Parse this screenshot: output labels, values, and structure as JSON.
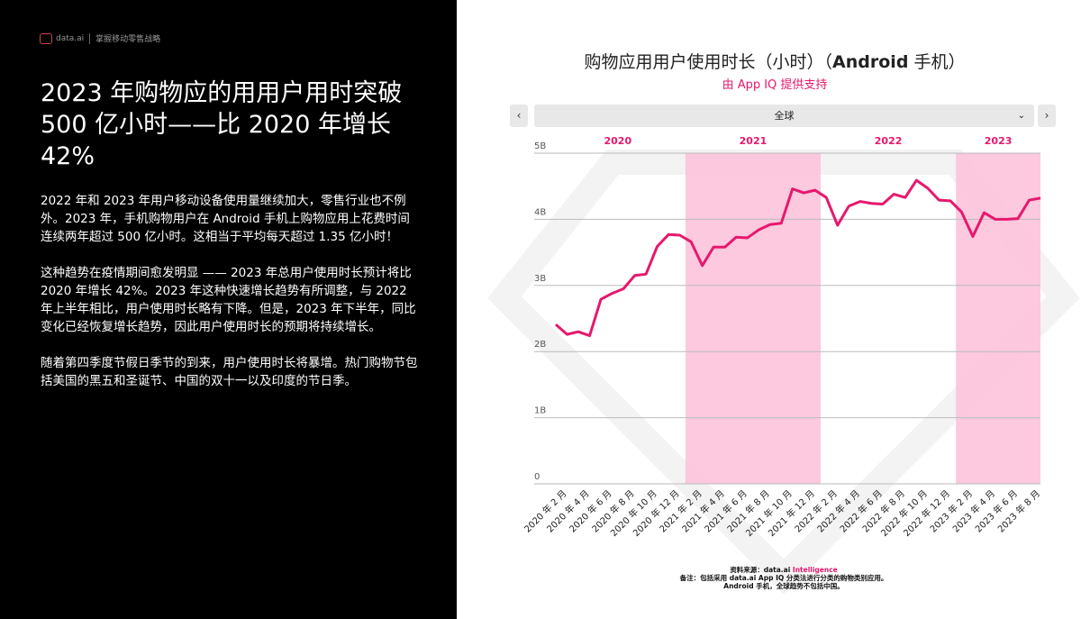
{
  "header": {
    "brand": "data.ai",
    "section": "掌握移动零售战略"
  },
  "headline": "2023 年购物应的用用户用时突破 500 亿小时——比 2020 年增长 42%",
  "body": [
    "2022 年和 2023 年用户移动设备使用量继续加大，零售行业也不例外。2023 年，手机购物用户在 Android 手机上购物应用上花费时间连续两年超过 500 亿小时。这相当于平均每天超过 1.35 亿小时！",
    "这种趋势在疫情期间愈发明显 —— 2023 年总用户使用时长预计将比 2020 年增长 42%。2023 年这种快速增长趋势有所调整，与 2022 年上半年相比，用户使用时长略有下降。但是，2023 年下半年，同比变化已经恢复增长趋势，因此用户使用时长的预期将持续增长。",
    "随着第四季度节假日季节的到来，用户使用时长将暴增。热门购物节包括美国的黑五和圣诞节、中国的双十一以及印度的节日季。"
  ],
  "chart_header": {
    "title_main": "购物应用用户使用时长（小时）（",
    "title_bold": "Android",
    "title_end": " 手机）",
    "subtitle": "由 App IQ 提供支持",
    "region_select": "全球",
    "prev": "‹",
    "next": "›",
    "chevron": "⌄"
  },
  "footer": {
    "source_label": "资料来源：data.ai ",
    "source_brand": "Intelligence",
    "note1": "备注：包括采用 data.ai App IQ 分类法进行分类的购物类别应用。",
    "note2": "Android 手机，全球趋势不包括中国。"
  },
  "colors": {
    "line": "#e6186d",
    "band": "#fcc3dc",
    "year_label": "#e6186d"
  },
  "chart_data": {
    "type": "line",
    "title": "购物应用用户使用时长（小时）（Android 手机）",
    "subtitle": "由 App IQ 提供支持",
    "ylim": [
      0,
      5
    ],
    "yticks": [
      "0",
      "1B",
      "2B",
      "3B",
      "4B",
      "5B"
    ],
    "ytick_values": [
      0,
      1,
      2,
      3,
      4,
      5
    ],
    "grid": true,
    "year_labels": [
      "2020",
      "2021",
      "2022",
      "2023"
    ],
    "shaded_years": [
      "2021",
      "2023"
    ],
    "x_tick_labels": [
      "2020 年 2 月",
      "2020 年 4 月",
      "2020 年 6 月",
      "2020 年 8 月",
      "2020 年 10 月",
      "2020 年 12 月",
      "2021 年 2 月",
      "2021 年 4 月",
      "2021 年 6 月",
      "2021 年 8 月",
      "2021 年 10 月",
      "2021 年 12 月",
      "2022 年 2 月",
      "2022 年 4 月",
      "2022 年 6 月",
      "2022 年 8 月",
      "2022 年 10 月",
      "2022 年 12 月",
      "2023 年 2 月",
      "2023 年 4 月",
      "2023 年 6 月",
      "2023 年 8 月"
    ],
    "x_start": "2020-01",
    "x_end": "2023-08",
    "unit": "B hours (monthly)",
    "values": [
      2.41,
      2.26,
      2.3,
      2.24,
      2.79,
      2.88,
      2.95,
      3.15,
      3.17,
      3.59,
      3.77,
      3.76,
      3.66,
      3.3,
      3.58,
      3.58,
      3.73,
      3.72,
      3.84,
      3.92,
      3.94,
      4.46,
      4.4,
      4.44,
      4.33,
      3.91,
      4.2,
      4.27,
      4.24,
      4.23,
      4.38,
      4.33,
      4.59,
      4.47,
      4.29,
      4.28,
      4.11,
      3.74,
      4.1,
      4.0,
      4.0,
      4.01,
      4.29,
      4.32
    ]
  }
}
